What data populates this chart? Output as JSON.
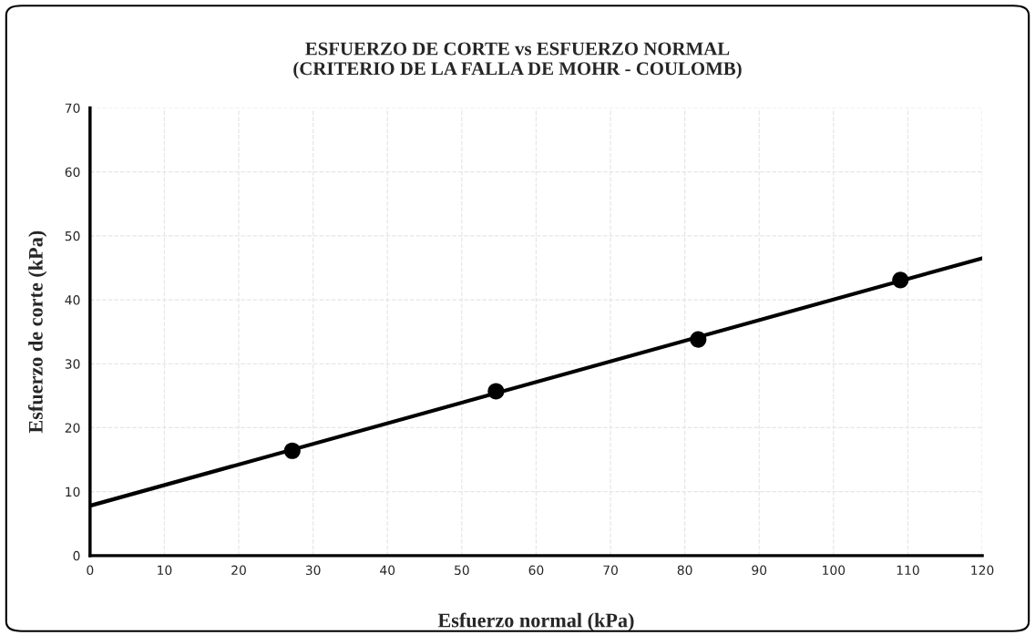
{
  "chart_data": {
    "type": "scatter",
    "title": "ESFUERZO DE CORTE vs ESFUERZO NORMAL\n(CRITERIO DE LA FALLA DE MOHR - COULOMB)",
    "xlabel": "Esfuerzo normal (kPa)",
    "ylabel": "Esfuerzo de corte (kPa)",
    "x": [
      27.2,
      54.6,
      81.8,
      109.0
    ],
    "series": [
      {
        "color": "#000000",
        "marker": "circle",
        "values": [
          16.4,
          25.7,
          33.8,
          43.1
        ]
      },
      {
        "type": "line",
        "color": "#000000",
        "marker": "none",
        "line_style": "solid",
        "x": [
          0,
          120
        ],
        "values": [
          7.8,
          46.5
        ]
      }
    ],
    "xlim": [
      0,
      120
    ],
    "xticks": [
      0,
      10,
      20,
      30,
      40,
      50,
      60,
      70,
      80,
      90,
      100,
      110,
      120
    ],
    "ylim": [
      0,
      70
    ],
    "yticks": [
      0,
      10,
      20,
      30,
      40,
      50,
      60,
      70
    ],
    "grid": true
  }
}
